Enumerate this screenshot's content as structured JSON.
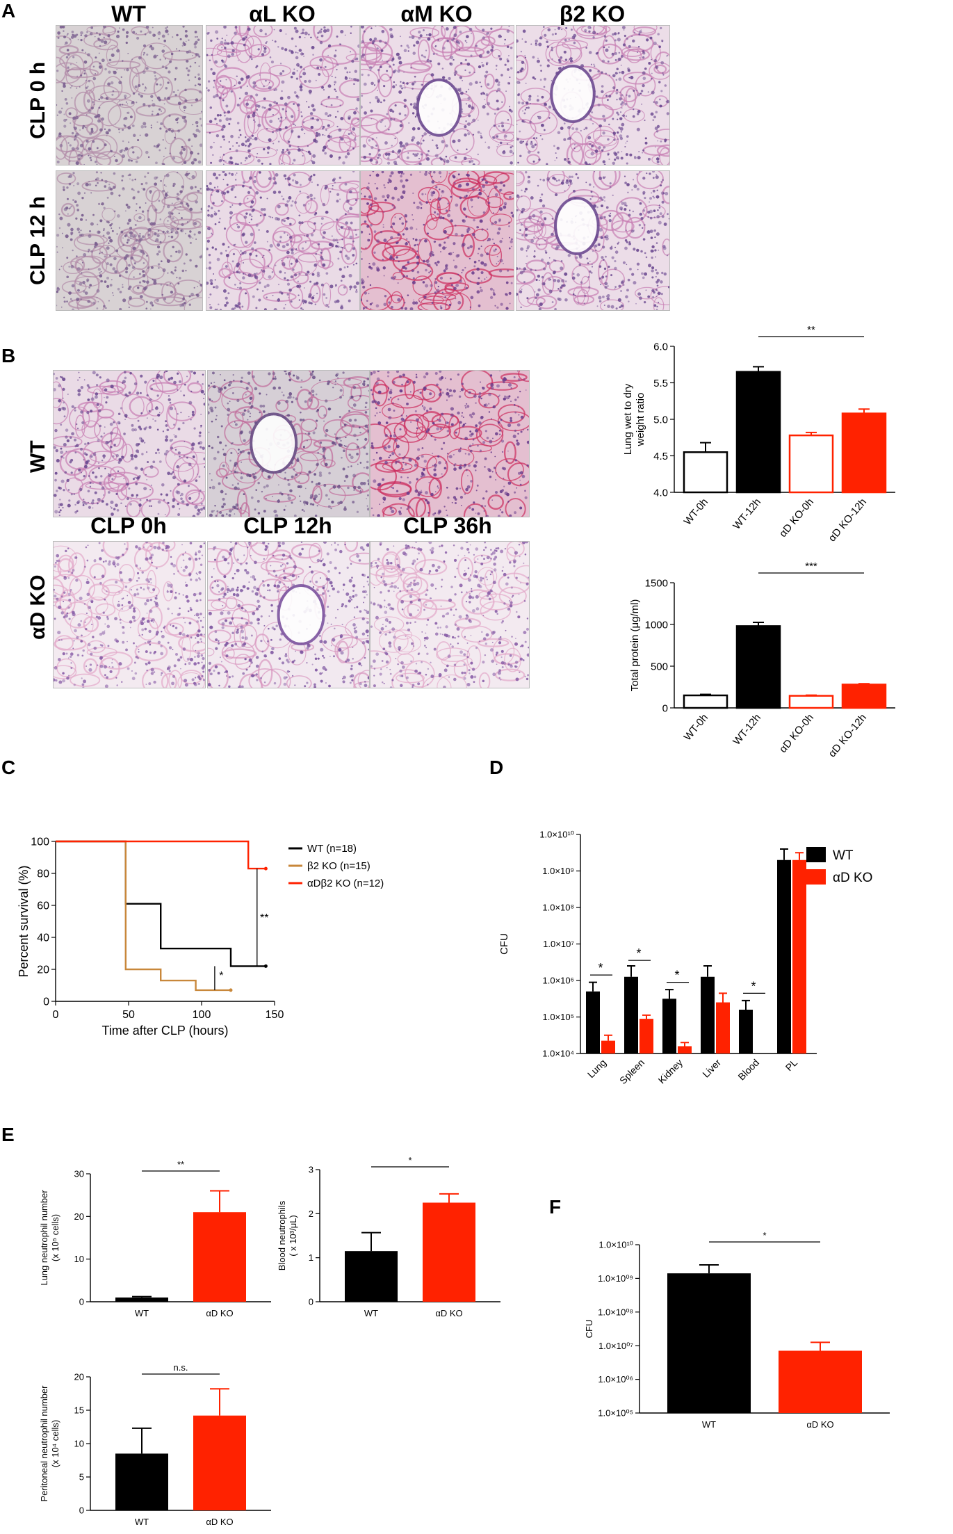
{
  "panels": {
    "A": {
      "letter": "A",
      "columns": [
        "WT",
        "αL KO",
        "αM KO",
        "β2 KO"
      ],
      "rows": [
        "CLP 0 h",
        "CLP 12 h"
      ]
    },
    "B": {
      "letter": "B",
      "rows": [
        "WT",
        "αD KO"
      ],
      "columns": [
        "CLP 0h",
        "CLP 12h",
        "CLP 36h"
      ]
    },
    "C": {
      "letter": "C"
    },
    "D": {
      "letter": "D"
    },
    "E": {
      "letter": "E"
    },
    "F": {
      "letter": "F"
    }
  },
  "colors": {
    "black": "#000000",
    "red": "#ff2200",
    "tan": "#c8873a",
    "tissue": "#e6c2d8",
    "stain": "#8a3d8a"
  },
  "chart_data": [
    {
      "id": "B1",
      "type": "bar",
      "categories": [
        "WT-0h",
        "WT-12h",
        "αD KO-0h",
        "αD KO-12h"
      ],
      "values": [
        4.55,
        5.65,
        4.78,
        5.08
      ],
      "errors": [
        0.13,
        0.07,
        0.04,
        0.06
      ],
      "fills": [
        "#ffffff",
        "#000000",
        "#ffffff",
        "#ff2200"
      ],
      "strokes": [
        "#000000",
        "#000000",
        "#ff2200",
        "#ff2200"
      ],
      "ylabel": "Lung wet to dry weight ratio",
      "ylabel_lines": [
        "Lung wet to dry",
        "weight ratio"
      ],
      "ylim": [
        4.0,
        6.0
      ],
      "yticks": [
        "4.0",
        "4.5",
        "5.0",
        "5.5",
        "6.0"
      ],
      "annotations": [
        {
          "text": "**",
          "from": 1,
          "to": 3
        }
      ]
    },
    {
      "id": "B2",
      "type": "bar",
      "categories": [
        "WT-0h",
        "WT-12h",
        "αD KO-0h",
        "αD KO-12h"
      ],
      "values": [
        150,
        980,
        145,
        280
      ],
      "errors": [
        12,
        45,
        8,
        10
      ],
      "fills": [
        "#ffffff",
        "#000000",
        "#ffffff",
        "#ff2200"
      ],
      "strokes": [
        "#000000",
        "#000000",
        "#ff2200",
        "#ff2200"
      ],
      "ylabel": "Total protein (μg/ml)",
      "ylim": [
        0,
        1500
      ],
      "yticks": [
        "0",
        "500",
        "1000",
        "1500"
      ],
      "annotations": [
        {
          "text": "***",
          "from": 1,
          "to": 3
        }
      ]
    },
    {
      "id": "C",
      "type": "line",
      "xlabel": "Time after CLP (hours)",
      "ylabel": "Percent survival (%)",
      "xlim": [
        0,
        150
      ],
      "ylim": [
        0,
        100
      ],
      "xticks": [
        "0",
        "50",
        "100",
        "150"
      ],
      "yticks": [
        "0",
        "20",
        "40",
        "60",
        "80",
        "100"
      ],
      "series": [
        {
          "name": "WT (n=18)",
          "color": "#000000",
          "x": [
            0,
            48,
            48,
            72,
            72,
            120,
            120,
            144
          ],
          "y": [
            100,
            100,
            61,
            61,
            33,
            33,
            22,
            22
          ]
        },
        {
          "name": "β2 KO (n=15)",
          "color": "#c8873a",
          "x": [
            0,
            48,
            48,
            72,
            72,
            96,
            96,
            120
          ],
          "y": [
            100,
            100,
            20,
            20,
            13,
            13,
            7,
            7
          ]
        },
        {
          "name": "αDβ2 KO (n=12)",
          "color": "#ff2200",
          "x": [
            0,
            132,
            132,
            144
          ],
          "y": [
            100,
            100,
            83,
            83
          ]
        }
      ],
      "annotations": [
        "**",
        "*"
      ]
    },
    {
      "id": "D",
      "type": "bar",
      "categories": [
        "Lung",
        "Spleen",
        "Kidney",
        "Liver",
        "Blood",
        "PL"
      ],
      "yscale": "log",
      "ylabel": "CFU",
      "yticks": [
        "1.0×10⁴",
        "1.0×10⁵",
        "1.0×10⁶",
        "1.0×10⁷",
        "1.0×10⁸",
        "1.0×10⁹",
        "1.0×10¹⁰"
      ],
      "ylim": [
        4,
        10
      ],
      "series": [
        {
          "name": "WT",
          "color": "#000000",
          "log_values": [
            5.7,
            6.1,
            5.5,
            6.1,
            5.2,
            9.3
          ],
          "log_errors": [
            0.25,
            0.3,
            0.25,
            0.3,
            0.25,
            0.3
          ]
        },
        {
          "name": "αD KO",
          "color": "#ff2200",
          "log_values": [
            4.35,
            4.95,
            4.2,
            5.4,
            0,
            9.3
          ],
          "log_errors": [
            0.15,
            0.1,
            0.1,
            0.25,
            0,
            0.2
          ]
        }
      ],
      "annotations": [
        {
          "text": "*",
          "index": 0
        },
        {
          "text": "*",
          "index": 1
        },
        {
          "text": "*",
          "index": 2
        },
        {
          "text": "*",
          "index": 4
        }
      ]
    },
    {
      "id": "E1",
      "type": "bar",
      "categories": [
        "WT",
        "αD KO"
      ],
      "values": [
        1.0,
        21.0
      ],
      "errors": [
        0.2,
        5.0
      ],
      "colors": [
        "#000000",
        "#ff2200"
      ],
      "ylabel": "Lung neutrophil number",
      "ylabel_lines": [
        "Lung neutrophil number",
        "(x 10⁵ cells)"
      ],
      "ylim": [
        0,
        30
      ],
      "yticks": [
        "0",
        "10",
        "20",
        "30"
      ],
      "annotation": "**"
    },
    {
      "id": "E2",
      "type": "bar",
      "categories": [
        "WT",
        "αD KO"
      ],
      "values": [
        1.15,
        2.25
      ],
      "errors": [
        0.42,
        0.2
      ],
      "colors": [
        "#000000",
        "#ff2200"
      ],
      "ylabel": "Blood neutrophils",
      "ylabel_lines": [
        "Blood neutrophils",
        "( x 10³/μL)"
      ],
      "ylim": [
        0,
        3
      ],
      "yticks": [
        "0",
        "1",
        "2",
        "3"
      ],
      "annotation": "*"
    },
    {
      "id": "E3",
      "type": "bar",
      "categories": [
        "WT",
        "αD KO"
      ],
      "values": [
        8.5,
        14.2
      ],
      "errors": [
        3.8,
        4.0
      ],
      "colors": [
        "#000000",
        "#ff2200"
      ],
      "ylabel": "Peritoneal neutrophil number",
      "ylabel_lines": [
        "Peritoneal neutrophil number",
        "(x 10⁴ cells)"
      ],
      "ylim": [
        0,
        20
      ],
      "yticks": [
        "0",
        "5",
        "10",
        "15",
        "20"
      ],
      "annotation": "n.s."
    },
    {
      "id": "F",
      "type": "bar",
      "categories": [
        "WT",
        "αD KO"
      ],
      "yscale": "log",
      "log_values": [
        9.15,
        6.85
      ],
      "log_errors": [
        0.25,
        0.25
      ],
      "colors": [
        "#000000",
        "#ff2200"
      ],
      "ylabel": "CFU",
      "ylim": [
        5,
        10
      ],
      "yticks": [
        "1.0×10⁰⁵",
        "1.0×10⁰⁶",
        "1.0×10⁰⁷",
        "1.0×10⁰⁸",
        "1.0×10⁰⁹",
        "1.0×10¹⁰"
      ],
      "annotation": "*"
    }
  ]
}
